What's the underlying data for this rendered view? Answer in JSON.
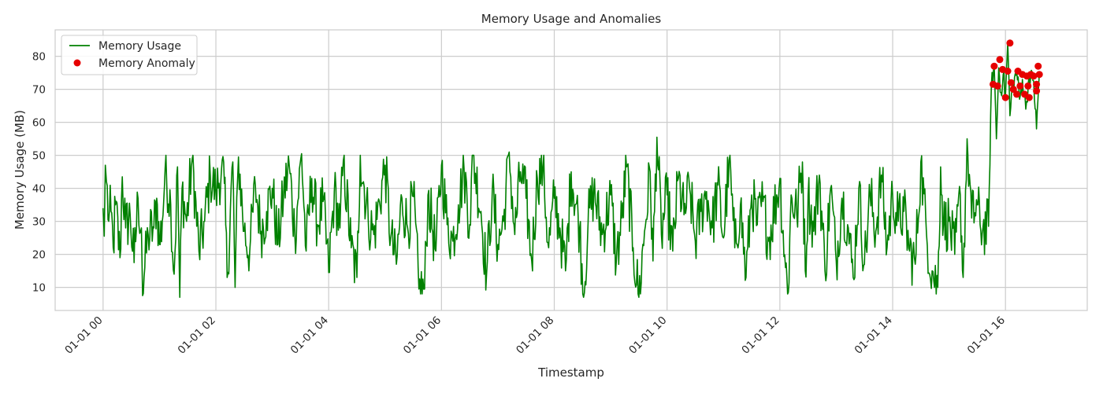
{
  "chart_data": {
    "type": "line",
    "title": "Memory Usage and Anomalies",
    "xlabel": "Timestamp",
    "ylabel": "Memory Usage (MB)",
    "x_ticks": [
      "01-01 00",
      "01-01 02",
      "01-01 04",
      "01-01 06",
      "01-01 08",
      "01-01 10",
      "01-01 12",
      "01-01 14",
      "01-01 16"
    ],
    "x_tick_hours": [
      0,
      2,
      4,
      6,
      8,
      10,
      12,
      14,
      16
    ],
    "xlim_hours": [
      -0.85,
      17.45
    ],
    "y_ticks": [
      10,
      20,
      30,
      40,
      50,
      60,
      70,
      80
    ],
    "ylim": [
      3,
      88
    ],
    "grid": true,
    "legend_position": "top-left",
    "series": [
      {
        "name": "Memory Usage",
        "color": "#008000",
        "kind": "line",
        "anchors": [
          [
            0.0,
            34
          ],
          [
            0.02,
            25.5
          ],
          [
            0.04,
            47
          ],
          [
            0.06,
            42
          ],
          [
            0.1,
            30
          ],
          [
            0.14,
            33
          ],
          [
            0.18,
            22
          ],
          [
            0.22,
            35
          ],
          [
            0.3,
            19
          ],
          [
            0.34,
            43.5
          ],
          [
            0.4,
            28
          ],
          [
            0.48,
            32
          ],
          [
            0.55,
            17.5
          ],
          [
            0.62,
            37
          ],
          [
            0.68,
            28
          ],
          [
            0.7,
            7.5
          ],
          [
            0.74,
            16
          ],
          [
            0.8,
            26
          ],
          [
            0.9,
            28
          ],
          [
            0.95,
            37
          ],
          [
            1.0,
            23
          ],
          [
            1.05,
            30
          ],
          [
            1.1,
            46
          ],
          [
            1.2,
            35
          ],
          [
            1.26,
            14
          ],
          [
            1.32,
            46.5
          ],
          [
            1.36,
            7
          ],
          [
            1.4,
            40
          ],
          [
            1.48,
            30
          ],
          [
            1.58,
            49
          ],
          [
            1.7,
            21
          ],
          [
            1.8,
            30
          ],
          [
            1.9,
            44
          ],
          [
            2.0,
            38.5
          ],
          [
            2.1,
            46
          ],
          [
            2.15,
            41.5
          ],
          [
            2.2,
            13
          ],
          [
            2.3,
            48
          ],
          [
            2.34,
            10
          ],
          [
            2.4,
            49.5
          ],
          [
            2.5,
            27
          ],
          [
            2.6,
            21
          ],
          [
            2.7,
            41
          ],
          [
            2.8,
            27
          ],
          [
            2.9,
            33
          ],
          [
            3.0,
            40
          ],
          [
            3.1,
            23
          ],
          [
            3.2,
            38
          ],
          [
            3.3,
            47
          ],
          [
            3.4,
            26
          ],
          [
            3.52,
            50.5
          ],
          [
            3.6,
            21
          ],
          [
            3.7,
            43
          ],
          [
            3.8,
            29
          ],
          [
            3.9,
            36
          ],
          [
            4.0,
            14.5
          ],
          [
            4.1,
            39
          ],
          [
            4.2,
            28
          ],
          [
            4.26,
            48.5
          ],
          [
            4.4,
            22
          ],
          [
            4.5,
            13
          ],
          [
            4.56,
            50
          ],
          [
            4.7,
            31
          ],
          [
            4.8,
            26
          ],
          [
            4.9,
            36
          ],
          [
            5.0,
            47
          ],
          [
            5.1,
            25
          ],
          [
            5.2,
            17
          ],
          [
            5.3,
            37
          ],
          [
            5.4,
            28
          ],
          [
            5.5,
            37.5
          ],
          [
            5.6,
            9.5
          ],
          [
            5.7,
            9.5
          ],
          [
            5.76,
            38
          ],
          [
            5.9,
            21
          ],
          [
            6.0,
            47
          ],
          [
            6.1,
            29
          ],
          [
            6.2,
            24
          ],
          [
            6.3,
            35
          ],
          [
            6.4,
            46
          ],
          [
            6.5,
            29
          ],
          [
            6.56,
            50
          ],
          [
            6.7,
            33
          ],
          [
            6.8,
            14
          ],
          [
            6.9,
            39
          ],
          [
            7.0,
            23
          ],
          [
            7.1,
            30
          ],
          [
            7.2,
            51
          ],
          [
            7.3,
            26
          ],
          [
            7.4,
            45
          ],
          [
            7.5,
            37
          ],
          [
            7.6,
            18
          ],
          [
            7.7,
            43
          ],
          [
            7.8,
            46.5
          ],
          [
            7.9,
            22
          ],
          [
            8.0,
            37
          ],
          [
            8.1,
            28
          ],
          [
            8.2,
            15
          ],
          [
            8.3,
            45
          ],
          [
            8.45,
            28
          ],
          [
            8.52,
            7
          ],
          [
            8.6,
            30
          ],
          [
            8.7,
            39
          ],
          [
            8.85,
            26
          ],
          [
            9.0,
            38
          ],
          [
            9.1,
            18
          ],
          [
            9.2,
            31
          ],
          [
            9.28,
            46.5
          ],
          [
            9.4,
            22
          ],
          [
            9.5,
            7
          ],
          [
            9.6,
            27
          ],
          [
            9.7,
            45
          ],
          [
            9.75,
            18
          ],
          [
            9.82,
            55.5
          ],
          [
            9.9,
            26
          ],
          [
            10.0,
            38
          ],
          [
            10.1,
            21
          ],
          [
            10.2,
            43
          ],
          [
            10.3,
            32
          ],
          [
            10.4,
            40
          ],
          [
            10.5,
            24
          ],
          [
            10.6,
            33
          ],
          [
            10.7,
            39
          ],
          [
            10.8,
            28
          ],
          [
            10.9,
            41
          ],
          [
            11.0,
            25
          ],
          [
            11.1,
            48.5
          ],
          [
            11.2,
            22
          ],
          [
            11.3,
            35
          ],
          [
            11.4,
            13
          ],
          [
            11.5,
            38
          ],
          [
            11.6,
            29
          ],
          [
            11.7,
            36
          ],
          [
            11.8,
            24
          ],
          [
            12.0,
            43
          ],
          [
            12.1,
            16
          ],
          [
            12.15,
            8.5
          ],
          [
            12.2,
            38
          ],
          [
            12.3,
            32
          ],
          [
            12.4,
            48
          ],
          [
            12.45,
            15
          ],
          [
            12.5,
            38
          ],
          [
            12.6,
            27
          ],
          [
            12.7,
            44
          ],
          [
            12.8,
            15
          ],
          [
            12.9,
            40
          ],
          [
            13.0,
            18
          ],
          [
            13.1,
            37
          ],
          [
            13.2,
            29
          ],
          [
            13.3,
            13
          ],
          [
            13.4,
            40
          ],
          [
            13.5,
            17
          ],
          [
            13.6,
            38
          ],
          [
            13.7,
            27
          ],
          [
            13.8,
            44
          ],
          [
            13.9,
            22
          ],
          [
            14.0,
            38
          ],
          [
            14.1,
            30
          ],
          [
            14.2,
            33
          ],
          [
            14.3,
            21
          ],
          [
            14.4,
            17
          ],
          [
            14.5,
            48
          ],
          [
            14.6,
            26
          ],
          [
            14.7,
            15
          ],
          [
            14.8,
            10
          ],
          [
            14.85,
            46.5
          ],
          [
            14.9,
            29
          ],
          [
            15.0,
            30
          ],
          [
            15.1,
            20
          ],
          [
            15.2,
            38
          ],
          [
            15.25,
            13
          ],
          [
            15.32,
            55
          ],
          [
            15.4,
            31
          ],
          [
            15.5,
            35
          ],
          [
            15.55,
            29
          ],
          [
            15.6,
            28
          ],
          [
            15.7,
            28.5
          ],
          [
            15.75,
            71
          ],
          [
            15.8,
            77
          ],
          [
            15.84,
            55
          ],
          [
            15.88,
            76.5
          ],
          [
            15.92,
            69
          ],
          [
            15.96,
            74.5
          ],
          [
            16.0,
            68
          ],
          [
            16.04,
            84
          ],
          [
            16.08,
            62
          ],
          [
            16.12,
            70
          ],
          [
            16.2,
            75.5
          ],
          [
            16.25,
            67
          ],
          [
            16.3,
            73
          ],
          [
            16.36,
            64
          ],
          [
            16.42,
            74
          ],
          [
            16.5,
            72.5
          ],
          [
            16.55,
            58
          ],
          [
            16.6,
            75
          ]
        ]
      },
      {
        "name": "Memory Anomaly",
        "color": "#e60000",
        "kind": "scatter",
        "points": [
          [
            15.78,
            71.5
          ],
          [
            15.8,
            77
          ],
          [
            15.86,
            71
          ],
          [
            15.9,
            79
          ],
          [
            15.95,
            76
          ],
          [
            16.0,
            67.5
          ],
          [
            16.04,
            75.5
          ],
          [
            16.08,
            84
          ],
          [
            16.1,
            72
          ],
          [
            16.14,
            70
          ],
          [
            16.22,
            75.5
          ],
          [
            16.26,
            71
          ],
          [
            16.3,
            74.5
          ],
          [
            16.34,
            68.5
          ],
          [
            16.38,
            74
          ],
          [
            16.42,
            67.5
          ],
          [
            16.45,
            74.5
          ],
          [
            16.5,
            74
          ],
          [
            16.55,
            71.5
          ],
          [
            16.58,
            77
          ],
          [
            16.6,
            74.5
          ],
          [
            16.55,
            69.5
          ],
          [
            16.4,
            71
          ],
          [
            16.2,
            68.5
          ]
        ]
      }
    ]
  }
}
